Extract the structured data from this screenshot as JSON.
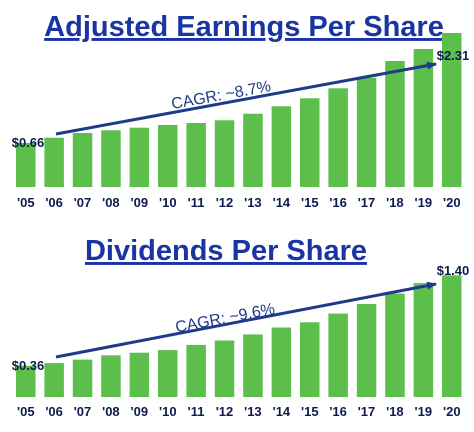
{
  "colors": {
    "bar": "#5cbf4c",
    "title": "#1a35a3",
    "trend": "#1e3a8a",
    "tick": "#0d1b4d",
    "label": "#0d1b4d"
  },
  "chart_data": [
    {
      "type": "bar",
      "title": "Adjusted Earnings Per Share",
      "categories": [
        "'05",
        "'06",
        "'07",
        "'08",
        "'09",
        "'10",
        "'11",
        "'12",
        "'13",
        "'14",
        "'15",
        "'16",
        "'17",
        "'18",
        "'19",
        "'20"
      ],
      "values": [
        0.66,
        0.74,
        0.81,
        0.85,
        0.89,
        0.93,
        0.96,
        1.0,
        1.1,
        1.21,
        1.33,
        1.48,
        1.64,
        1.89,
        2.07,
        2.31
      ],
      "ylim": [
        0,
        2.4
      ],
      "annotations": {
        "start_label": "$0.66",
        "end_label": "$2.31",
        "trend_label": "CAGR: ~8.7%"
      }
    },
    {
      "type": "bar",
      "title": "Dividends Per Share",
      "categories": [
        "'05",
        "'06",
        "'07",
        "'08",
        "'09",
        "'10",
        "'11",
        "'12",
        "'13",
        "'14",
        "'15",
        "'16",
        "'17",
        "'18",
        "'19",
        "'20"
      ],
      "values": [
        0.36,
        0.39,
        0.43,
        0.48,
        0.51,
        0.54,
        0.6,
        0.65,
        0.72,
        0.8,
        0.86,
        0.96,
        1.07,
        1.19,
        1.31,
        1.4
      ],
      "ylim": [
        0,
        1.45
      ],
      "annotations": {
        "start_label": "$0.36",
        "end_label": "$1.40",
        "trend_label": "CAGR: ~9.6%"
      }
    }
  ]
}
